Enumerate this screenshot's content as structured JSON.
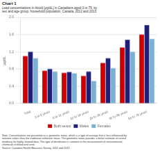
{
  "chart_data": {
    "type": "bar",
    "title": "Chart 1",
    "subtitle": [
      "Lead concentrations in blood (µg/dL) in Canadians aged 3 to 79, by",
      "sex and age group, household population, Canada, 2012 and 2013"
    ],
    "ylabel": "µg/dL",
    "categories": [
      "Total",
      "3 to 5 years",
      "6 to 11 years",
      "12 to 19 years",
      "20 to 39 years",
      "40 to 59 years",
      "60 to 79 years"
    ],
    "series": [
      {
        "name": "Both sexes",
        "color": "#cc0000",
        "values": [
          1.1,
          0.76,
          0.71,
          0.64,
          0.94,
          1.3,
          1.6
        ]
      },
      {
        "name": "Males",
        "color": "#1f1f7a",
        "values": [
          1.2,
          0.8,
          0.73,
          0.74,
          1.05,
          1.48,
          1.82
        ]
      },
      {
        "name": "Females",
        "color": "#7ab0d4",
        "values": [
          1.05,
          0.74,
          0.7,
          0.52,
          0.82,
          1.2,
          1.5
        ]
      }
    ],
    "ylim": [
      0.0,
      2.0
    ],
    "yticks": [
      {
        "value": 0.0,
        "label": "0.0"
      },
      0.4,
      0.8,
      1.2,
      1.6,
      {
        "value": 2.0,
        "label": "2.0"
      }
    ],
    "grid": true,
    "legend": "bottom",
    "annotations": [
      "Note: Concentrations are presented as a geometric mean, which is a type of average that is less influenced by\nextreme values than the traditional arithmetic mean. The geometric mean provides a better estimate of central\ntendency for highly skewed data. This type of distribution is common in the measurement of environmental\nchemicals in blood and urine.\nSource: Canadian Health Measures Survey, 2012 and 2013"
    ]
  }
}
